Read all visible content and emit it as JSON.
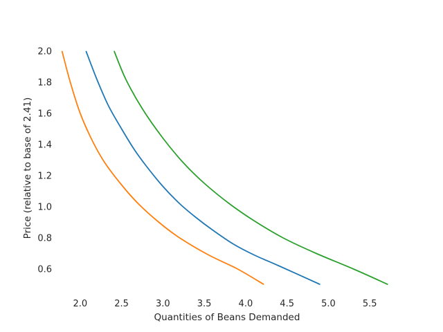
{
  "chart_data": {
    "type": "line",
    "title": "",
    "xlabel": "Quantities of Beans Demanded",
    "ylabel": "Price (relative to base of 2.41)",
    "xlim": [
      1.7,
      5.85
    ],
    "ylim": [
      0.43,
      2.07
    ],
    "grid": false,
    "legend": "none",
    "x_ticks": [
      "2.0",
      "2.5",
      "3.0",
      "3.5",
      "4.0",
      "4.5",
      "5.0",
      "5.5"
    ],
    "y_ticks": [
      "0.6",
      "0.8",
      "1.0",
      "1.2",
      "1.4",
      "1.6",
      "1.8",
      "2.0"
    ],
    "series": [
      {
        "color": "#1f77b4",
        "points": [
          [
            2.07,
            2.0
          ],
          [
            2.2,
            1.82
          ],
          [
            2.34,
            1.65
          ],
          [
            2.5,
            1.5
          ],
          [
            2.65,
            1.37
          ],
          [
            2.8,
            1.26
          ],
          [
            3.0,
            1.13
          ],
          [
            3.2,
            1.02
          ],
          [
            3.4,
            0.93
          ],
          [
            3.6,
            0.85
          ],
          [
            3.85,
            0.76
          ],
          [
            4.1,
            0.69
          ],
          [
            4.4,
            0.62
          ],
          [
            4.9,
            0.5
          ]
        ]
      },
      {
        "color": "#ff7f0e",
        "points": [
          [
            1.78,
            2.0
          ],
          [
            1.88,
            1.8
          ],
          [
            2.0,
            1.6
          ],
          [
            2.15,
            1.42
          ],
          [
            2.3,
            1.28
          ],
          [
            2.5,
            1.14
          ],
          [
            2.7,
            1.02
          ],
          [
            2.95,
            0.9
          ],
          [
            3.2,
            0.8
          ],
          [
            3.55,
            0.69
          ],
          [
            3.9,
            0.6
          ],
          [
            4.22,
            0.5
          ]
        ]
      },
      {
        "color": "#2ca02c",
        "points": [
          [
            2.41,
            2.0
          ],
          [
            2.55,
            1.82
          ],
          [
            2.75,
            1.63
          ],
          [
            3.0,
            1.44
          ],
          [
            3.25,
            1.28
          ],
          [
            3.5,
            1.15
          ],
          [
            3.8,
            1.02
          ],
          [
            4.1,
            0.91
          ],
          [
            4.45,
            0.8
          ],
          [
            4.85,
            0.7
          ],
          [
            5.3,
            0.6
          ],
          [
            5.72,
            0.5
          ]
        ]
      }
    ]
  }
}
